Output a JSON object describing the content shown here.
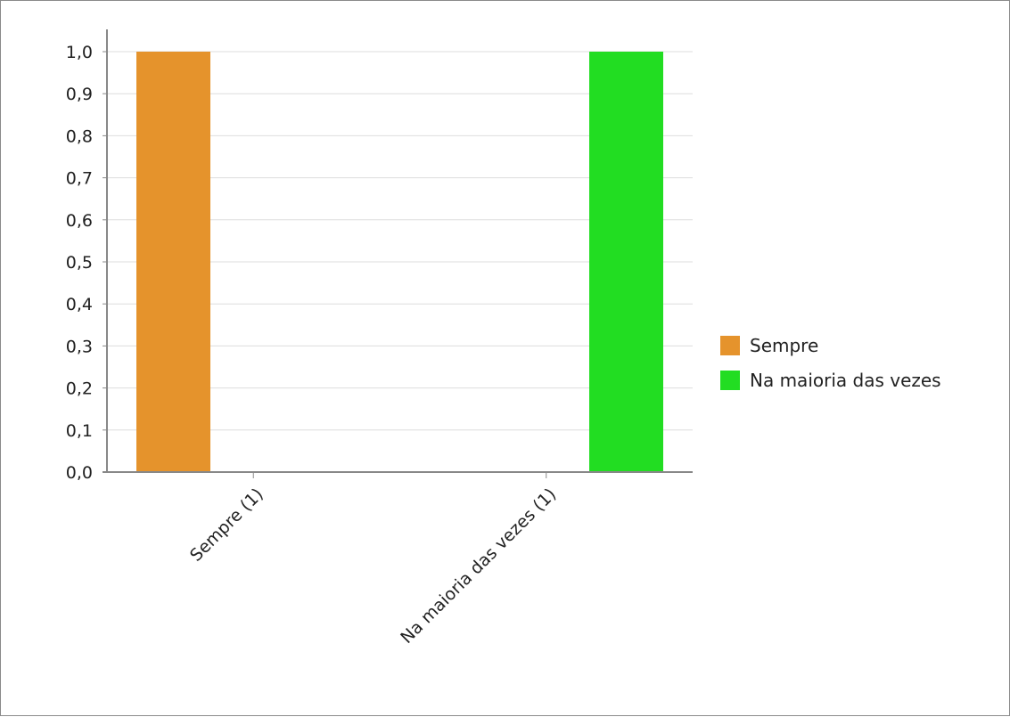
{
  "chart_data": {
    "type": "bar",
    "categories": [
      "Sempre (1)",
      "Na maioria das vezes (1)"
    ],
    "series": [
      {
        "name": "Sempre",
        "values": [
          1.0,
          0.0
        ],
        "color": "#e5932c"
      },
      {
        "name": "Na maioria das vezes",
        "values": [
          0.0,
          1.0
        ],
        "color": "#22dd22"
      }
    ],
    "ylim": [
      0,
      1.0
    ],
    "yticks": [
      "0,0",
      "0,1",
      "0,2",
      "0,3",
      "0,4",
      "0,5",
      "0,6",
      "0,7",
      "0,8",
      "0,9",
      "1,0"
    ],
    "grid": true,
    "legend_position": "right"
  }
}
